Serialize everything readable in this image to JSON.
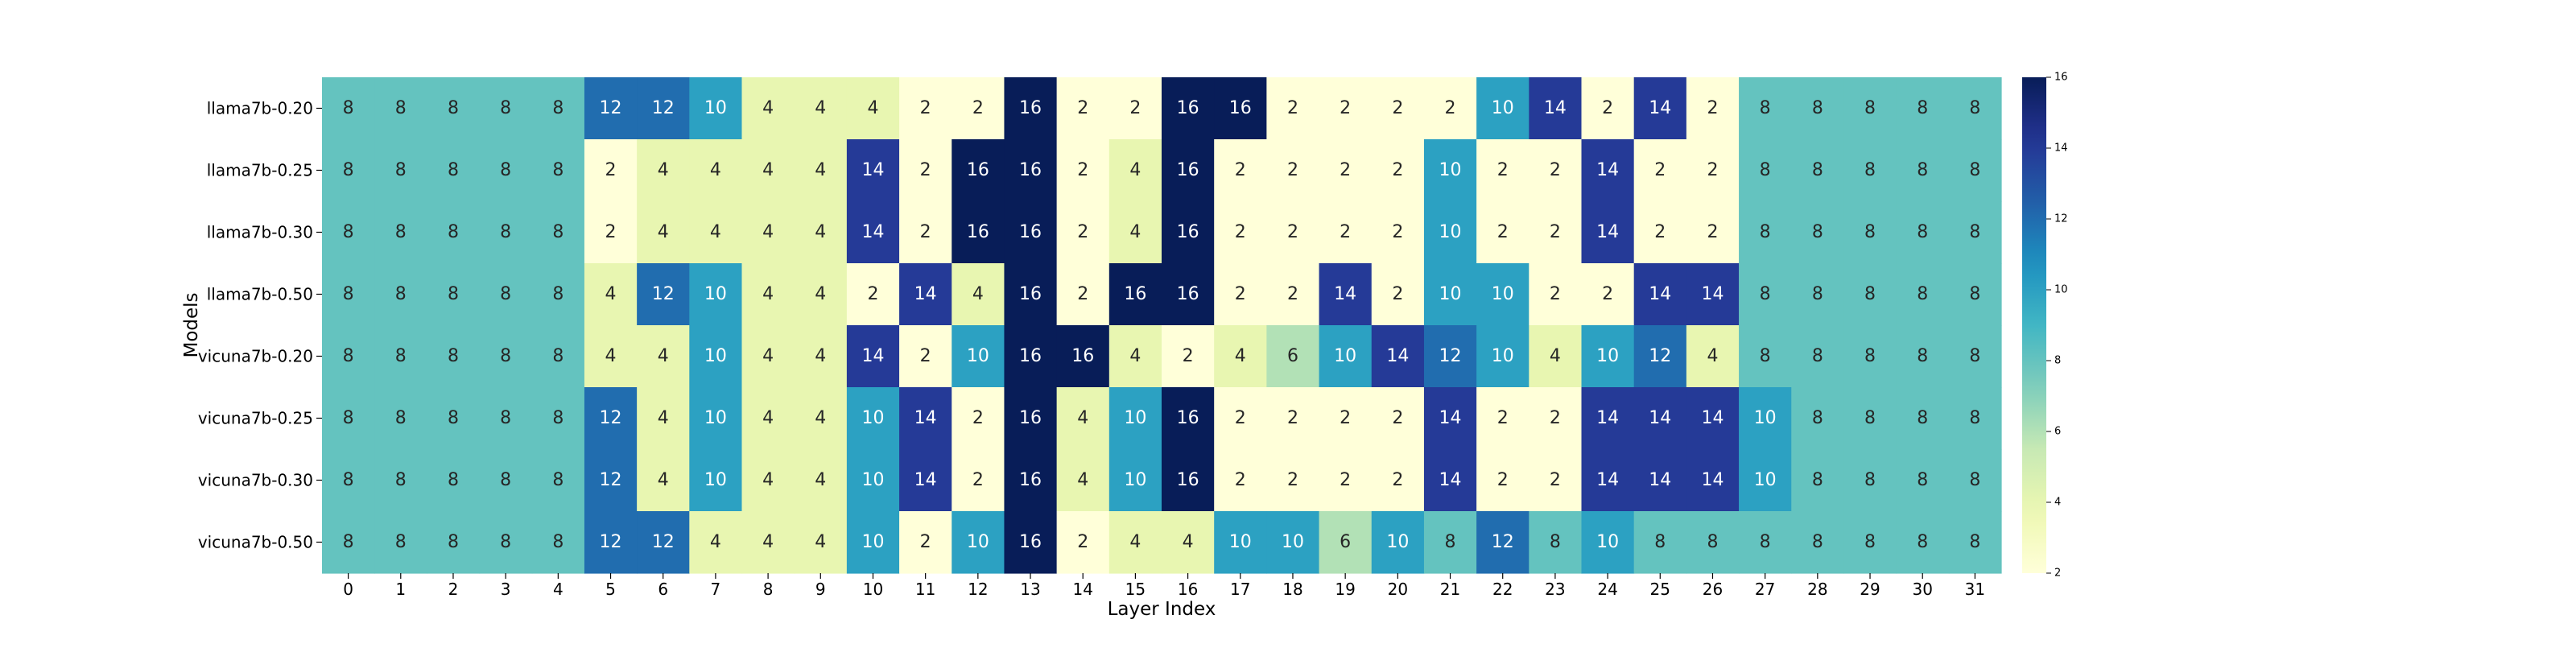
{
  "chart_data": {
    "type": "heatmap",
    "xlabel": "Layer Index",
    "ylabel": "Models",
    "x_categories": [
      "0",
      "1",
      "2",
      "3",
      "4",
      "5",
      "6",
      "7",
      "8",
      "9",
      "10",
      "11",
      "12",
      "13",
      "14",
      "15",
      "16",
      "17",
      "18",
      "19",
      "20",
      "21",
      "22",
      "23",
      "24",
      "25",
      "26",
      "27",
      "28",
      "29",
      "30",
      "31"
    ],
    "y_categories": [
      "llama7b-0.20",
      "llama7b-0.25",
      "llama7b-0.30",
      "llama7b-0.50",
      "vicuna7b-0.20",
      "vicuna7b-0.25",
      "vicuna7b-0.30",
      "vicuna7b-0.50"
    ],
    "values": [
      [
        8,
        8,
        8,
        8,
        8,
        12,
        12,
        10,
        4,
        4,
        4,
        2,
        2,
        16,
        2,
        2,
        16,
        16,
        2,
        2,
        2,
        2,
        10,
        14,
        2,
        14,
        2,
        8,
        8,
        8,
        8,
        8
      ],
      [
        8,
        8,
        8,
        8,
        8,
        2,
        4,
        4,
        4,
        4,
        14,
        2,
        16,
        16,
        2,
        4,
        16,
        2,
        2,
        2,
        2,
        10,
        2,
        2,
        14,
        2,
        2,
        8,
        8,
        8,
        8,
        8
      ],
      [
        8,
        8,
        8,
        8,
        8,
        2,
        4,
        4,
        4,
        4,
        14,
        2,
        16,
        16,
        2,
        4,
        16,
        2,
        2,
        2,
        2,
        10,
        2,
        2,
        14,
        2,
        2,
        8,
        8,
        8,
        8,
        8
      ],
      [
        8,
        8,
        8,
        8,
        8,
        4,
        12,
        10,
        4,
        4,
        2,
        14,
        4,
        16,
        2,
        16,
        16,
        2,
        2,
        14,
        2,
        10,
        10,
        2,
        2,
        14,
        14,
        8,
        8,
        8,
        8,
        8
      ],
      [
        8,
        8,
        8,
        8,
        8,
        4,
        4,
        10,
        4,
        4,
        14,
        2,
        10,
        16,
        16,
        4,
        2,
        4,
        6,
        10,
        14,
        12,
        10,
        4,
        10,
        12,
        4,
        8,
        8,
        8,
        8,
        8
      ],
      [
        8,
        8,
        8,
        8,
        8,
        12,
        4,
        10,
        4,
        4,
        10,
        14,
        2,
        16,
        4,
        10,
        16,
        2,
        2,
        2,
        2,
        14,
        2,
        2,
        14,
        14,
        14,
        10,
        8,
        8,
        8,
        8
      ],
      [
        8,
        8,
        8,
        8,
        8,
        12,
        4,
        10,
        4,
        4,
        10,
        14,
        2,
        16,
        4,
        10,
        16,
        2,
        2,
        2,
        2,
        14,
        2,
        2,
        14,
        14,
        14,
        10,
        8,
        8,
        8,
        8
      ],
      [
        8,
        8,
        8,
        8,
        8,
        12,
        12,
        4,
        4,
        4,
        10,
        2,
        10,
        16,
        2,
        4,
        4,
        10,
        10,
        6,
        10,
        8,
        12,
        8,
        10,
        8,
        8,
        8,
        8,
        8,
        8,
        8
      ]
    ],
    "vmin": 2,
    "vmax": 16,
    "colormap": "YlGnBu",
    "colorbar_ticks": [
      "2",
      "4",
      "6",
      "8",
      "10",
      "12",
      "14",
      "16"
    ],
    "grid": false
  }
}
